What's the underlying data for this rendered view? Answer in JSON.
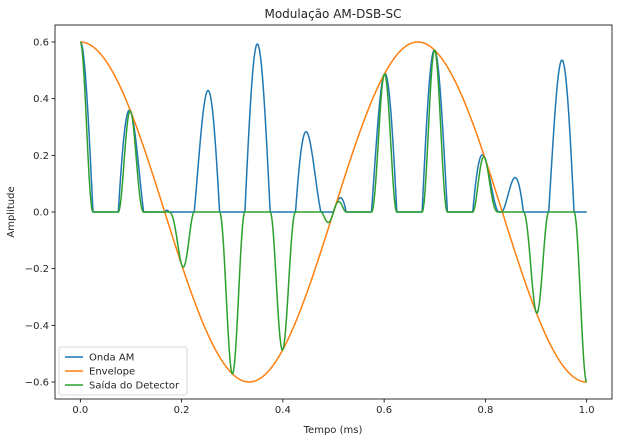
{
  "chart_data": {
    "type": "line",
    "title": "Modulação AM-DSB-SC",
    "xlabel": "Tempo (ms)",
    "ylabel": "Amplitude",
    "xlim": [
      -0.05,
      1.05
    ],
    "ylim": [
      -0.66,
      0.66
    ],
    "xticks": [
      "0.0",
      "0.2",
      "0.4",
      "0.6",
      "0.8",
      "1.0"
    ],
    "xtick_values": [
      0.0,
      0.2,
      0.4,
      0.6,
      0.8,
      1.0
    ],
    "yticks": [
      "−0.6",
      "−0.4",
      "−0.2",
      "0.0",
      "0.2",
      "0.4",
      "0.6"
    ],
    "ytick_values": [
      -0.6,
      -0.4,
      -0.2,
      0.0,
      0.2,
      0.4,
      0.6
    ],
    "grid": false,
    "legend_position": "lower-left",
    "signal_model": {
      "message_amplitude": 0.6,
      "message_frequency_khz": 1.5,
      "carrier_frequency_khz": 10,
      "duration_ms": 1.0
    },
    "series": [
      {
        "name": "Onda AM",
        "color": "#1f77b4",
        "formula": "max(0, m(t)*cos(2*pi*fc*t))"
      },
      {
        "name": "Envelope",
        "color": "#ff7f0e",
        "formula": "m(t) = A*cos(2*pi*fm*t)"
      },
      {
        "name": "Saída do Detector",
        "color": "#2ca02c",
        "formula": "m(t) * max(0, cos(2*pi*fc*t))^2"
      }
    ]
  }
}
